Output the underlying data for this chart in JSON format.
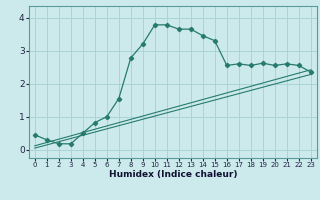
{
  "xlabel": "Humidex (Indice chaleur)",
  "bg_color": "#cceaec",
  "grid_color": "#aad4d8",
  "line_color": "#267b6e",
  "xlim": [
    -0.5,
    23.5
  ],
  "ylim": [
    -0.25,
    4.35
  ],
  "xticks": [
    0,
    1,
    2,
    3,
    4,
    5,
    6,
    7,
    8,
    9,
    10,
    11,
    12,
    13,
    14,
    15,
    16,
    17,
    18,
    19,
    20,
    21,
    22,
    23
  ],
  "yticks": [
    0,
    1,
    2,
    3,
    4
  ],
  "curve1_x": [
    0,
    1,
    2,
    3,
    4,
    5,
    6,
    7,
    8,
    9,
    10,
    11,
    12,
    13,
    14,
    15,
    16,
    17,
    18,
    19,
    20,
    21,
    22,
    23
  ],
  "curve1_y": [
    0.45,
    0.3,
    0.18,
    0.18,
    0.5,
    0.82,
    1.0,
    1.55,
    2.78,
    3.2,
    3.78,
    3.78,
    3.65,
    3.65,
    3.45,
    3.3,
    2.55,
    2.6,
    2.55,
    2.62,
    2.55,
    2.6,
    2.55,
    2.35
  ],
  "curve2_x": [
    0,
    23
  ],
  "curve2_y": [
    0.12,
    2.42
  ],
  "curve3_x": [
    0,
    23
  ],
  "curve3_y": [
    0.05,
    2.28
  ]
}
